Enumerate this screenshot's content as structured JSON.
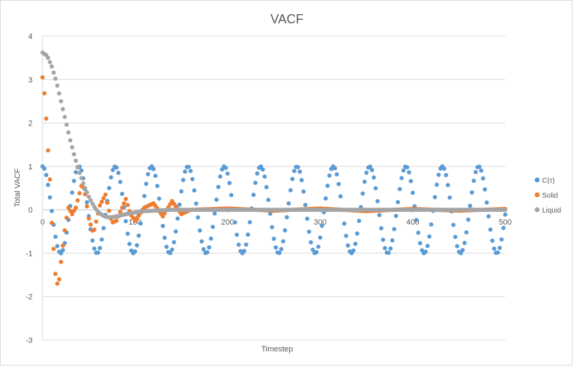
{
  "chart_data": {
    "type": "scatter",
    "title": "VACF",
    "xlabel": "Timestep",
    "ylabel": "Total VACF",
    "xlim": [
      0,
      500
    ],
    "ylim": [
      -3,
      4
    ],
    "x_ticks": [
      0,
      100,
      200,
      300,
      400,
      500
    ],
    "y_ticks": [
      -3,
      -2,
      -1,
      0,
      1,
      2,
      3,
      4
    ],
    "x_step": 2,
    "grid": "horizontal",
    "legend_position": "right",
    "series": [
      {
        "name": "C(τ)",
        "color": "#5b9bd5",
        "description": "cosine oscillation, amplitude 1, period ~39.3 timesteps (ω≈0.16)",
        "amplitude": 1.0,
        "omega": 0.16
      },
      {
        "name": "Solid",
        "color": "#ed7d31",
        "key_points": [
          [
            0,
            3.05
          ],
          [
            3,
            2.5
          ],
          [
            5,
            1.7
          ],
          [
            8,
            0.7
          ],
          [
            10,
            -0.3
          ],
          [
            13,
            -1.2
          ],
          [
            15,
            -1.75
          ],
          [
            18,
            -1.6
          ],
          [
            21,
            -1.0
          ],
          [
            25,
            -0.3
          ],
          [
            28,
            0.05
          ],
          [
            32,
            -0.1
          ],
          [
            36,
            0.05
          ],
          [
            42,
            0.55
          ],
          [
            45,
            0.5
          ],
          [
            50,
            -0.2
          ],
          [
            55,
            -0.55
          ],
          [
            62,
            0.1
          ],
          [
            68,
            0.35
          ],
          [
            75,
            -0.3
          ],
          [
            80,
            -0.25
          ],
          [
            90,
            0.25
          ],
          [
            95,
            -0.1
          ],
          [
            100,
            -0.25
          ],
          [
            110,
            0.05
          ],
          [
            120,
            0.15
          ],
          [
            130,
            -0.15
          ],
          [
            140,
            0.2
          ],
          [
            150,
            -0.1
          ],
          [
            160,
            0.0
          ],
          [
            200,
            0.03
          ],
          [
            250,
            -0.02
          ],
          [
            300,
            0.03
          ],
          [
            350,
            -0.03
          ],
          [
            400,
            0.02
          ],
          [
            450,
            -0.02
          ],
          [
            500,
            0.02
          ]
        ]
      },
      {
        "name": "Liquid",
        "color": "#a5a5a5",
        "key_points": [
          [
            0,
            3.62
          ],
          [
            5,
            3.55
          ],
          [
            10,
            3.3
          ],
          [
            15,
            2.95
          ],
          [
            20,
            2.5
          ],
          [
            25,
            2.05
          ],
          [
            30,
            1.6
          ],
          [
            35,
            1.2
          ],
          [
            40,
            0.85
          ],
          [
            45,
            0.55
          ],
          [
            50,
            0.3
          ],
          [
            55,
            0.1
          ],
          [
            60,
            -0.05
          ],
          [
            65,
            -0.13
          ],
          [
            70,
            -0.17
          ],
          [
            75,
            -0.17
          ],
          [
            80,
            -0.15
          ],
          [
            90,
            -0.1
          ],
          [
            100,
            -0.06
          ],
          [
            110,
            -0.03
          ],
          [
            120,
            -0.02
          ],
          [
            140,
            0.0
          ],
          [
            200,
            0.0
          ],
          [
            300,
            0.0
          ],
          [
            400,
            0.0
          ],
          [
            500,
            0.0
          ]
        ]
      }
    ]
  }
}
